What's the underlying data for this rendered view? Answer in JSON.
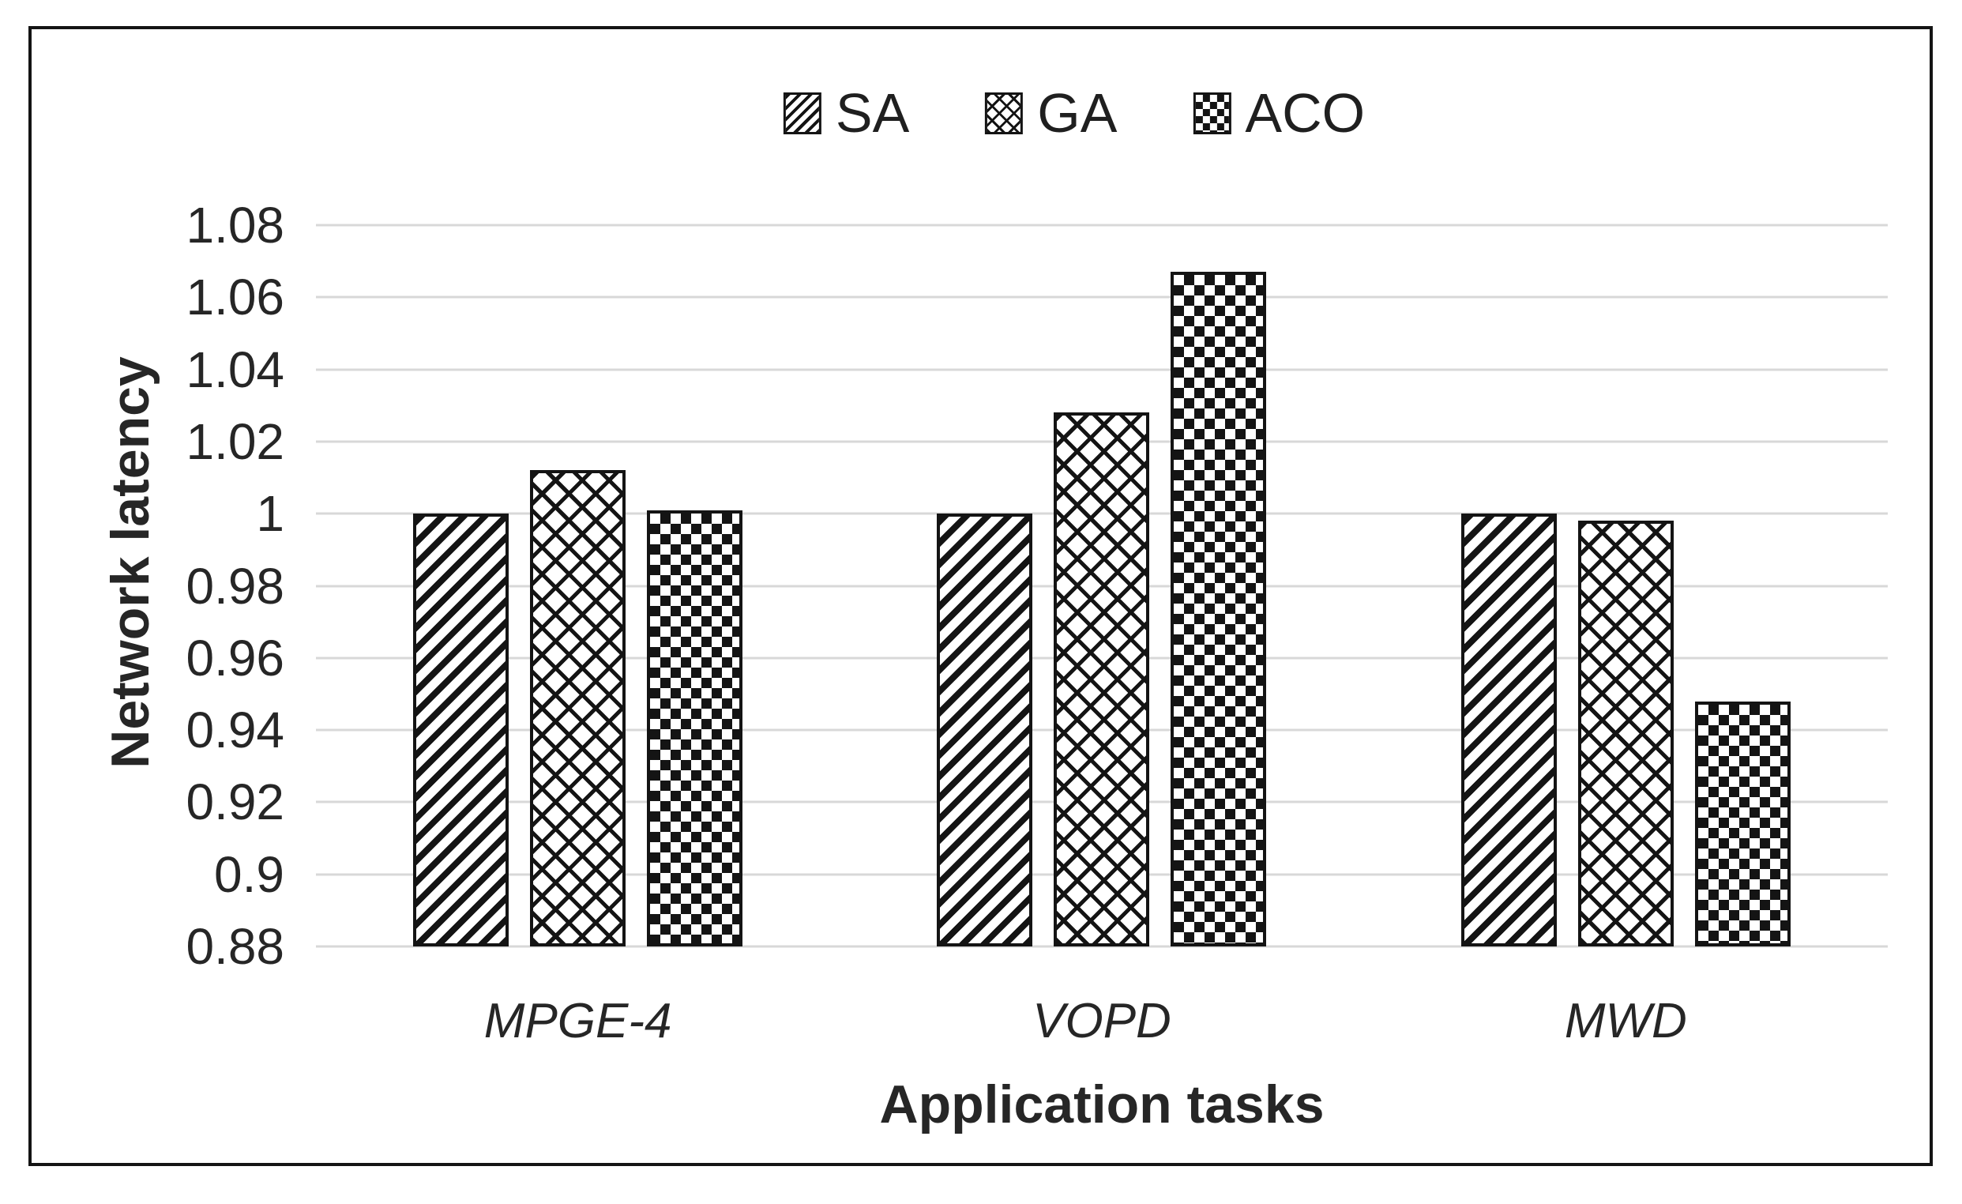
{
  "chart_data": {
    "type": "bar",
    "title": "",
    "categories": [
      "MPGE-4",
      "VOPD",
      "MWD"
    ],
    "series": [
      {
        "name": "SA",
        "pattern": "diagonal-stripes",
        "values": [
          1.0,
          1.0,
          1.0
        ]
      },
      {
        "name": "GA",
        "pattern": "diamond-crosshatch",
        "values": [
          1.012,
          1.028,
          0.998
        ]
      },
      {
        "name": "ACO",
        "pattern": "checkerboard",
        "values": [
          1.001,
          1.067,
          0.948
        ]
      }
    ],
    "xlabel": "Application tasks",
    "ylabel": "Network latency",
    "ylim": [
      0.88,
      1.08
    ],
    "ytick_step": 0.02,
    "ytick_labels": [
      "1.08",
      "1.06",
      "1.04",
      "1.02",
      "1",
      "0.98",
      "0.96",
      "0.94",
      "0.92",
      "0.9",
      "0.88"
    ],
    "grid": true,
    "legend_position": "top-center",
    "colors": {
      "bar_fill": "#ffffff",
      "bar_stroke": "#141414",
      "gridline": "#d8d8d8",
      "text": "#262626",
      "frame": "#141414",
      "background": "#ffffff"
    }
  }
}
